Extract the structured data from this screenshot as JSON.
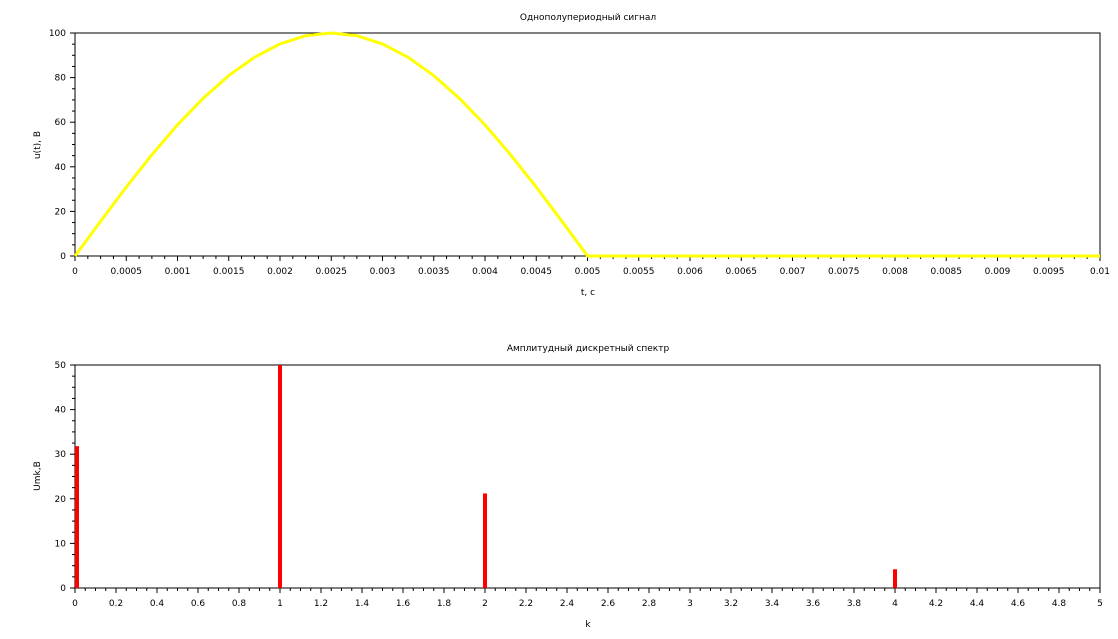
{
  "chart_data": [
    {
      "type": "line",
      "title": "Однополупериодный сигнал",
      "xlabel": "t, c",
      "ylabel": "u(t), B",
      "xlim": [
        0,
        0.01
      ],
      "ylim": [
        0,
        100
      ],
      "grid": false,
      "xticks": [
        "0",
        "0.0005",
        "0.001",
        "0.0015",
        "0.002",
        "0.0025",
        "0.003",
        "0.0035",
        "0.004",
        "0.0045",
        "0.005",
        "0.0055",
        "0.006",
        "0.0065",
        "0.007",
        "0.0075",
        "0.008",
        "0.0085",
        "0.009",
        "0.0095",
        "0.01"
      ],
      "yticks": [
        "0",
        "20",
        "40",
        "60",
        "80",
        "100"
      ],
      "series": [
        {
          "color": "#ffff00",
          "x": [
            0,
            0.00025,
            0.0005,
            0.00075,
            0.001,
            0.00125,
            0.0015,
            0.00175,
            0.002,
            0.00225,
            0.0025,
            0.00275,
            0.003,
            0.00325,
            0.0035,
            0.00375,
            0.004,
            0.00425,
            0.0045,
            0.00475,
            0.005,
            0.0055,
            0.006,
            0.0065,
            0.007,
            0.0075,
            0.008,
            0.0085,
            0.009,
            0.0095,
            0.01
          ],
          "y": [
            0,
            15.6,
            30.9,
            45.4,
            58.8,
            70.7,
            80.9,
            89.1,
            95.1,
            98.8,
            100,
            98.8,
            95.1,
            89.1,
            80.9,
            70.7,
            58.8,
            45.4,
            30.9,
            15.6,
            0,
            0,
            0,
            0,
            0,
            0,
            0,
            0,
            0,
            0,
            0
          ]
        }
      ]
    },
    {
      "type": "bar",
      "title": "Амплитудный дискретный спектр",
      "xlabel": "k",
      "ylabel": "Umk,B",
      "xlim": [
        0,
        5
      ],
      "ylim": [
        0,
        50
      ],
      "grid": false,
      "xticks": [
        "0",
        "0.2",
        "0.4",
        "0.6",
        "0.8",
        "1",
        "1.2",
        "1.4",
        "1.6",
        "1.8",
        "2",
        "2.2",
        "2.4",
        "2.6",
        "2.8",
        "3",
        "3.2",
        "3.4",
        "3.6",
        "3.8",
        "4",
        "4.2",
        "4.4",
        "4.6",
        "4.8",
        "5"
      ],
      "yticks": [
        "0",
        "10",
        "20",
        "30",
        "40",
        "50"
      ],
      "series": [
        {
          "color": "#ff0000",
          "x": [
            0,
            1,
            2,
            4
          ],
          "values": [
            31.8,
            50,
            21.2,
            4.2
          ]
        }
      ]
    }
  ]
}
